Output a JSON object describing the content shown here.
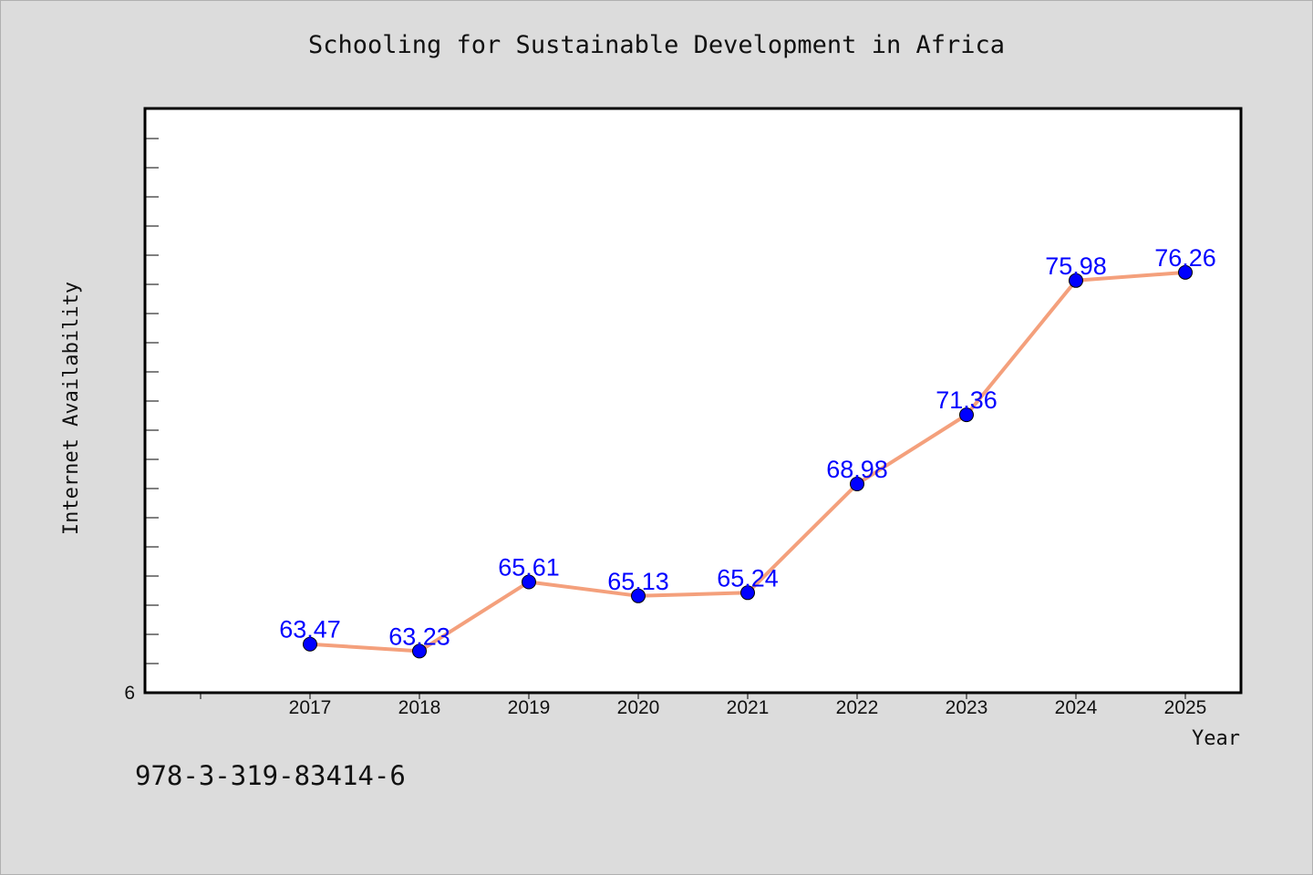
{
  "chart_data": {
    "type": "line",
    "title": "Schooling for Sustainable Development in Africa",
    "xlabel": "Year",
    "ylabel": "Internet Availability",
    "x": [
      "2017",
      "2018",
      "2019",
      "2020",
      "2021",
      "2022",
      "2023",
      "2024",
      "2025"
    ],
    "series": [
      {
        "values": [
          63.47,
          63.23,
          65.61,
          65.13,
          65.24,
          68.98,
          71.36,
          75.98,
          76.26
        ],
        "data_labels": [
          "63.47",
          "63.23",
          "65.61",
          "65.13",
          "65.24",
          "68.98",
          "71.36",
          "75.98",
          "76.26"
        ],
        "line_color": "#f4a07c",
        "marker_color": "#0000ff"
      }
    ],
    "y_tick_labels": [
      "6"
    ],
    "ylim": [
      61.8,
      81.9
    ],
    "grid": false,
    "legend": "none"
  },
  "annotation": "978-3-319-83414-6",
  "colors": {
    "background": "#dcdcdc",
    "plot_background": "#ffffff",
    "data_label": "#0000ff"
  }
}
